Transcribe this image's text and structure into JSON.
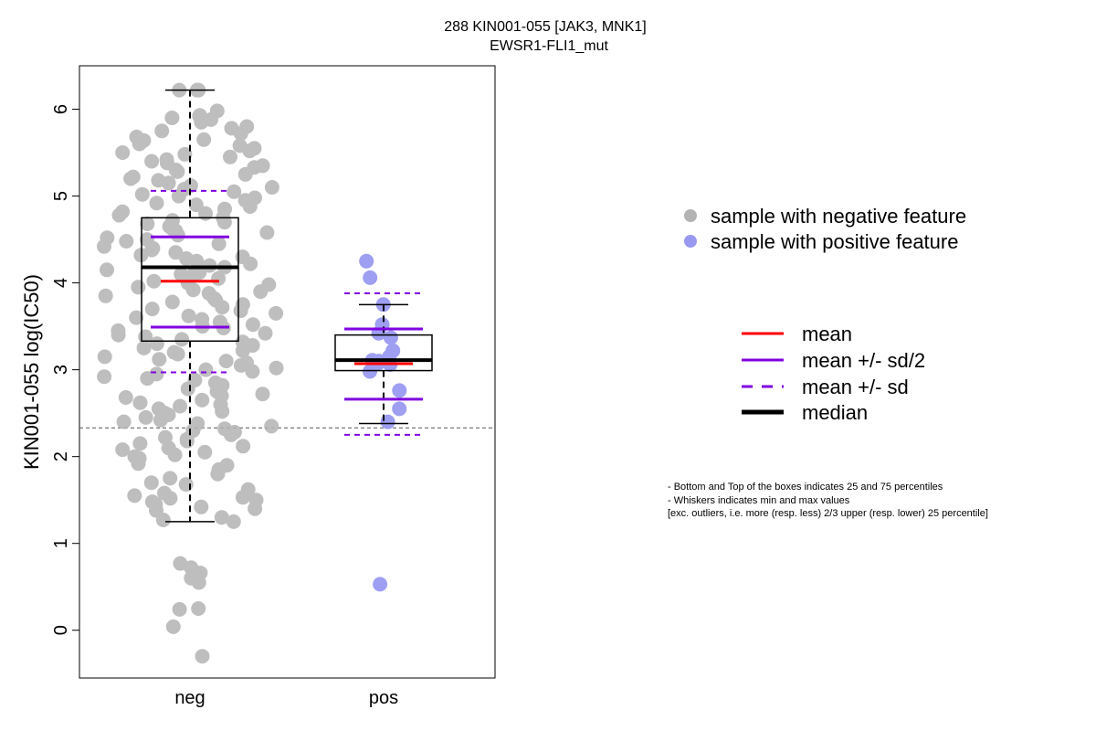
{
  "chart_data": {
    "type": "box",
    "title": "288 KIN001-055 [JAK3, MNK1]",
    "subtitle": "EWSR1-FLI1_mut",
    "xlabel": "",
    "ylabel": "KIN001-055 log(IC50)",
    "ylim": [
      -0.55,
      6.5
    ],
    "yticks": [
      "0",
      "1",
      "2",
      "3",
      "4",
      "5",
      "6"
    ],
    "threshold": 2.33,
    "categories": [
      "neg",
      "pos"
    ],
    "groups": [
      {
        "name": "neg",
        "color": "#b3b3b3",
        "q1": 3.33,
        "median": 4.18,
        "q3": 4.75,
        "whisker_low": 1.25,
        "whisker_high": 6.22,
        "mean": 4.02,
        "half_sd_low": 3.49,
        "half_sd_high": 4.53,
        "sd_low": 2.97,
        "sd_high": 5.06,
        "points": [
          6.22,
          6.22,
          6.22,
          5.98,
          5.93,
          5.92,
          5.9,
          5.88,
          5.85,
          5.8,
          5.78,
          5.75,
          5.72,
          5.68,
          5.65,
          5.64,
          5.6,
          5.58,
          5.55,
          5.52,
          5.5,
          5.48,
          5.45,
          5.42,
          5.4,
          5.38,
          5.35,
          5.33,
          5.3,
          5.28,
          5.25,
          5.22,
          5.2,
          5.18,
          5.15,
          5.12,
          5.1,
          5.08,
          5.05,
          5.02,
          5.0,
          4.98,
          4.95,
          4.92,
          4.9,
          4.88,
          4.85,
          4.82,
          4.8,
          4.78,
          4.75,
          4.72,
          4.7,
          4.68,
          4.65,
          4.62,
          4.6,
          4.58,
          4.55,
          4.52,
          4.5,
          4.48,
          4.45,
          4.42,
          4.4,
          4.38,
          4.35,
          4.32,
          4.3,
          4.28,
          4.25,
          4.22,
          4.2,
          4.18,
          4.15,
          4.12,
          4.1,
          4.08,
          4.05,
          4.02,
          4.0,
          3.98,
          3.95,
          3.92,
          3.9,
          3.88,
          3.85,
          3.82,
          3.8,
          3.78,
          3.75,
          3.72,
          3.7,
          3.68,
          3.65,
          3.62,
          3.6,
          3.58,
          3.55,
          3.52,
          3.5,
          3.48,
          3.45,
          3.42,
          3.4,
          3.38,
          3.35,
          3.32,
          3.3,
          3.28,
          3.25,
          3.22,
          3.2,
          3.18,
          3.15,
          3.12,
          3.1,
          3.08,
          3.05,
          3.02,
          3.0,
          2.98,
          2.95,
          2.92,
          2.9,
          2.88,
          2.85,
          2.82,
          2.8,
          2.78,
          2.75,
          2.72,
          2.7,
          2.68,
          2.65,
          2.62,
          2.6,
          2.58,
          2.55,
          2.52,
          2.5,
          2.48,
          2.45,
          2.42,
          2.4,
          2.38,
          2.35,
          2.32,
          2.3,
          2.28,
          2.25,
          2.22,
          2.2,
          2.18,
          2.15,
          2.12,
          2.1,
          2.08,
          2.05,
          2.02,
          2.0,
          1.98,
          1.95,
          1.92,
          1.9,
          1.85,
          1.8,
          1.75,
          1.7,
          1.68,
          1.62,
          1.58,
          1.55,
          1.53,
          1.52,
          1.5,
          1.48,
          1.45,
          1.42,
          1.4,
          1.38,
          1.3,
          1.27,
          1.25,
          0.77,
          0.72,
          0.66,
          0.6,
          0.55,
          0.25,
          0.24,
          0.04,
          -0.3
        ]
      },
      {
        "name": "pos",
        "color": "#9999f2",
        "q1": 2.99,
        "median": 3.11,
        "q3": 3.4,
        "whisker_low": 2.38,
        "whisker_high": 3.75,
        "mean": 3.07,
        "half_sd_low": 2.66,
        "half_sd_high": 3.47,
        "sd_low": 2.25,
        "sd_high": 3.88,
        "points": [
          4.25,
          4.06,
          3.75,
          3.52,
          3.42,
          3.37,
          3.22,
          3.15,
          3.11,
          3.1,
          3.08,
          3.06,
          2.98,
          2.76,
          2.55,
          2.4,
          0.53
        ]
      }
    ],
    "legend_points": [
      {
        "label": "sample with negative feature",
        "color": "#b3b3b3"
      },
      {
        "label": "sample with positive feature",
        "color": "#9999f2"
      }
    ],
    "legend_lines": [
      {
        "label": "mean",
        "color": "#ff0000",
        "style": "solid"
      },
      {
        "label": "mean +/- sd/2",
        "color": "#8000e0",
        "style": "solid"
      },
      {
        "label": "mean +/- sd",
        "color": "#8000e0",
        "style": "dashed"
      },
      {
        "label": "median",
        "color": "#000000",
        "style": "solid-thick"
      }
    ],
    "notes": [
      "- Bottom and Top of the boxes indicates 25 and 75 percentiles",
      "- Whiskers indicates min and max values",
      "[exc. outliers, i.e. more (resp. less) 2/3 upper (resp. lower) 25 percentile]"
    ]
  }
}
